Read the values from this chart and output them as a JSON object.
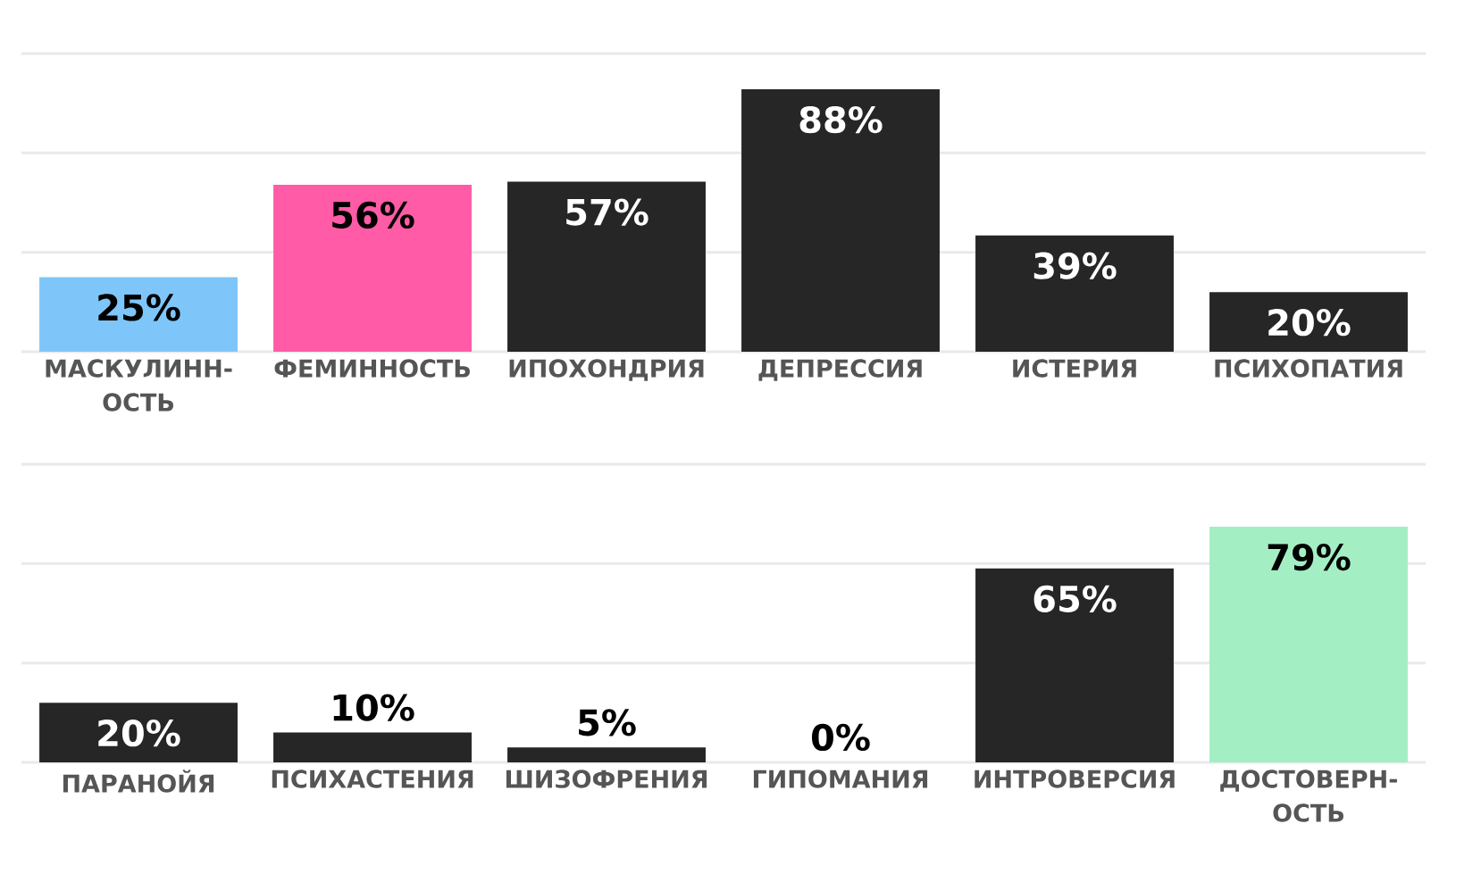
{
  "chart_data": [
    {
      "type": "bar",
      "categories": [
        "МАСКУЛИНН- ОСТЬ",
        "ФЕМИННОСТЬ",
        "ИПОХОНДРИЯ",
        "ДЕПРЕССИЯ",
        "ИСТЕРИЯ",
        "ПСИХОПАТИЯ"
      ],
      "values": [
        25,
        56,
        57,
        88,
        39,
        20
      ],
      "value_labels": [
        "25%",
        "56%",
        "57%",
        "88%",
        "39%",
        "20%"
      ],
      "colors": [
        "#7ec6fa",
        "#ff5ba7",
        "#262626",
        "#262626",
        "#262626",
        "#262626"
      ],
      "ylim": [
        0,
        100
      ],
      "yticks": [
        {
          "value": 0,
          "label": null
        },
        {
          "value": 33.3,
          "label": null
        },
        {
          "value": 66.7,
          "label": null
        },
        {
          "value": 100,
          "label": null
        }
      ],
      "grid": "y",
      "tick_labels": "x"
    },
    {
      "type": "bar",
      "categories": [
        "ПАРАНОЙЯ",
        "ПСИХАСТЕНИЯ",
        "ШИЗОФРЕНИЯ",
        "ГИПОМАНИЯ",
        "ИНТРОВЕРСИЯ",
        "ДОСТОВЕРН- ОСТЬ"
      ],
      "values": [
        20,
        10,
        5,
        0,
        65,
        79
      ],
      "value_labels": [
        "20%",
        "10%",
        "5%",
        "0%",
        "65%",
        "79%"
      ],
      "colors": [
        "#262626",
        "#262626",
        "#262626",
        "#262626",
        "#262626",
        "#a3efc3"
      ],
      "ylim": [
        0,
        100
      ],
      "yticks": [
        {
          "value": 0,
          "label": null
        },
        {
          "value": 33.3,
          "label": null
        },
        {
          "value": 66.7,
          "label": null
        },
        {
          "value": 100,
          "label": null
        }
      ],
      "grid": "y",
      "tick_labels": "x"
    }
  ]
}
